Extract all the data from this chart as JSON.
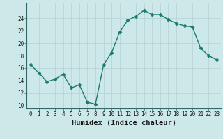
{
  "x": [
    0,
    1,
    2,
    3,
    4,
    5,
    6,
    7,
    8,
    9,
    10,
    11,
    12,
    13,
    14,
    15,
    16,
    17,
    18,
    19,
    20,
    21,
    22,
    23
  ],
  "y": [
    16.5,
    15.2,
    13.8,
    14.2,
    15.0,
    12.8,
    13.3,
    10.5,
    10.2,
    16.5,
    18.5,
    21.8,
    23.7,
    24.3,
    25.3,
    24.6,
    24.6,
    23.8,
    23.2,
    22.8,
    22.6,
    19.2,
    18.0,
    17.3
  ],
  "line_color": "#1a7a6e",
  "marker": "D",
  "marker_size": 2.5,
  "linewidth": 1.0,
  "xlabel": "Humidex (Indice chaleur)",
  "ylim": [
    9.5,
    26.5
  ],
  "xlim": [
    -0.5,
    23.5
  ],
  "yticks": [
    10,
    12,
    14,
    16,
    18,
    20,
    22,
    24
  ],
  "xticks": [
    0,
    1,
    2,
    3,
    4,
    5,
    6,
    7,
    8,
    9,
    10,
    11,
    12,
    13,
    14,
    15,
    16,
    17,
    18,
    19,
    20,
    21,
    22,
    23
  ],
  "bg_color": "#cce8e8",
  "grid_major_color": "#b8d4d4",
  "grid_minor_color": "#d4e8e8",
  "tick_label_size": 5.5,
  "xlabel_size": 7.5
}
